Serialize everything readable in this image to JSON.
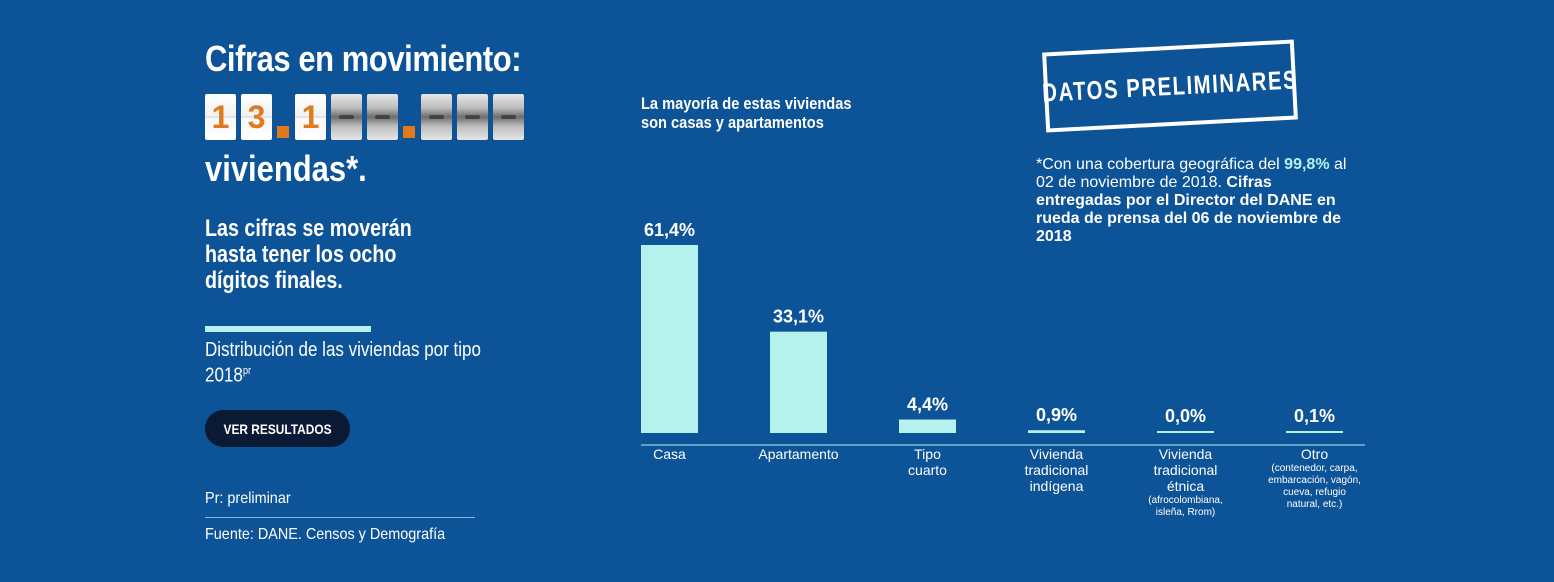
{
  "header": {
    "headline": "Cifras en movimiento:",
    "counter_digits": [
      "1",
      "3",
      ".",
      "1",
      "■",
      "■",
      ".",
      "■",
      "■",
      "■"
    ],
    "counter_suffix": "viviendas*.",
    "subhead": "Las cifras se moverán hasta tener los ocho dígitos finales."
  },
  "distribution": {
    "title": "Distribución de las viviendas por tipo 2018",
    "title_sup": "pr"
  },
  "button": {
    "label": "VER RESULTADOS"
  },
  "notes": {
    "preliminar": "Pr: preliminar",
    "source": "Fuente: DANE. Censos y Demografía"
  },
  "stamp": {
    "text": "DATOS PRELIMINARES"
  },
  "coverage": {
    "prefix": "*Con una cobertura geográfica del",
    "highlight": "99,8%",
    "date_text": "al 02 de noviembre de 2018.",
    "bold_text": "Cifras entregadas por el Director del DANE en rueda de prensa del 06 de noviembre de 2018"
  },
  "colors": {
    "background": "#0d5398",
    "bar": "#b5f2ee",
    "digit_accent": "#e07a1f",
    "button_bg": "#0a1a35"
  },
  "chart_data": {
    "type": "bar",
    "title": "La mayoría de estas viviendas son casas y apartamentos",
    "categories": [
      {
        "lines": [
          "Casa"
        ],
        "sub": []
      },
      {
        "lines": [
          "Apartamento"
        ],
        "sub": []
      },
      {
        "lines": [
          "Tipo",
          "cuarto"
        ],
        "sub": []
      },
      {
        "lines": [
          "Vivienda",
          "tradicional",
          "indígena"
        ],
        "sub": []
      },
      {
        "lines": [
          "Vivienda",
          "tradicional",
          "étnica"
        ],
        "sub": [
          "(afrocolombiana,",
          "isleña, Rrom)"
        ]
      },
      {
        "lines": [
          "Otro"
        ],
        "sub": [
          "(contenedor, carpa,",
          "embarcación, vagón,",
          "cueva, refugio",
          "natural, etc.)"
        ]
      }
    ],
    "values": [
      61.4,
      33.1,
      4.4,
      0.9,
      0.0,
      0.1
    ],
    "value_labels": [
      "61,4%",
      "33,1%",
      "4,4%",
      "0,9%",
      "0,0%",
      "0,1%"
    ],
    "unit": "%",
    "ylim": [
      0,
      61.4
    ],
    "grid": false,
    "legend": "none"
  }
}
